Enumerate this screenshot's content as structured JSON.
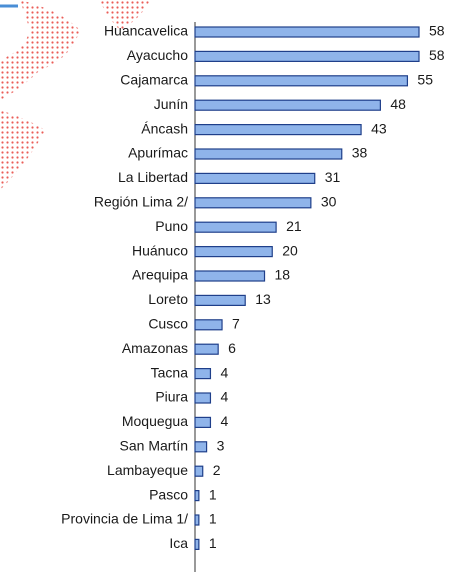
{
  "chart_data": {
    "type": "bar",
    "orientation": "horizontal",
    "categories": [
      "Huancavelica",
      "Ayacucho",
      "Cajamarca",
      "Junín",
      "Áncash",
      "Apurímac",
      "La Libertad",
      "Región Lima 2/",
      "Puno",
      "Huánuco",
      "Arequipa",
      "Loreto",
      "Cusco",
      "Amazonas",
      "Tacna",
      "Piura",
      "Moquegua",
      "San Martín",
      "Lambayeque",
      "Pasco",
      "Provincia de Lima 1/",
      "Ica"
    ],
    "values": [
      58,
      58,
      55,
      48,
      43,
      38,
      31,
      30,
      21,
      20,
      18,
      13,
      7,
      6,
      4,
      4,
      4,
      3,
      2,
      1,
      1,
      1
    ],
    "color": "#8fb4ea"
  }
}
